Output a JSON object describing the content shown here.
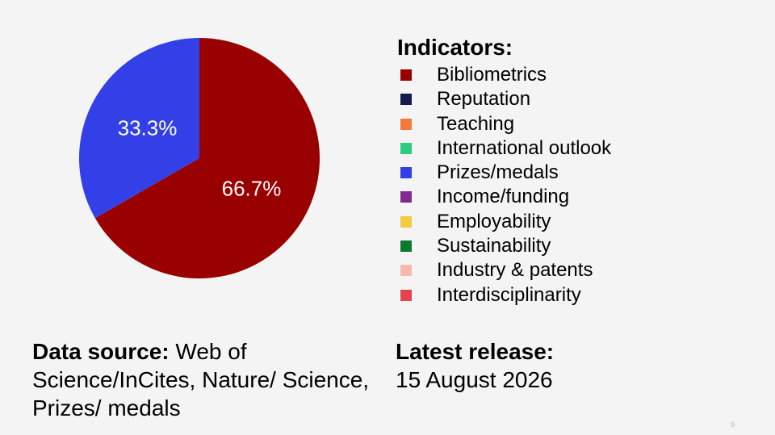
{
  "chart_data": {
    "type": "pie",
    "slices": [
      {
        "label": "Bibliometrics",
        "value": 66.7,
        "display": "66.7%",
        "color": "#990000"
      },
      {
        "label": "Prizes/medals",
        "value": 33.3,
        "display": "33.3%",
        "color": "#3340e8"
      }
    ],
    "legend_title": "Indicators:",
    "legend_entries": [
      {
        "label": "Bibliometrics",
        "color": "#990000"
      },
      {
        "label": "Reputation",
        "color": "#141a4a"
      },
      {
        "label": "Teaching",
        "color": "#f5793a"
      },
      {
        "label": "International outlook",
        "color": "#2ecc80"
      },
      {
        "label": "Prizes/medals",
        "color": "#3340e8"
      },
      {
        "label": "Income/funding",
        "color": "#7e2a90"
      },
      {
        "label": "Employability",
        "color": "#f5c940"
      },
      {
        "label": "Sustainability",
        "color": "#0a7a30"
      },
      {
        "label": "Industry & patents",
        "color": "#f7b8b0"
      },
      {
        "label": "Interdisciplinarity",
        "color": "#e8424f"
      }
    ],
    "legend_position": "right"
  },
  "footer": {
    "source_label": "Data source:",
    "source_text": " Web of Science/InCites, Nature/ Science, Prizes/ medals",
    "release_label": "Latest release:",
    "release_date": "15 August 2026"
  },
  "slide_number": "9"
}
